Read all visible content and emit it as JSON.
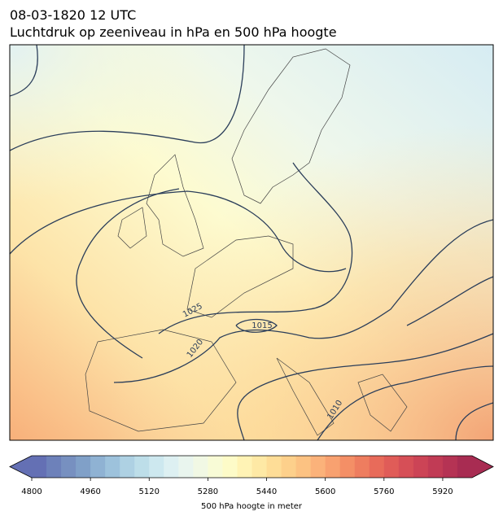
{
  "title": "08-03-1820 12 UTC",
  "subtitle": "Luchtdruk op zeeniveau in hPa en 500 hPa hoogte",
  "map": {
    "contour_labels": [
      "1025",
      "1020",
      "1015",
      "1010"
    ]
  },
  "colorbar": {
    "label": "500 hPa hoogte in meter",
    "lim": [
      4800,
      6000
    ],
    "ticks": [
      4800,
      4960,
      5120,
      5280,
      5440,
      5600,
      5760,
      5920
    ],
    "colors": [
      "#6470b4",
      "#6d81ba",
      "#7790c0",
      "#80a0c8",
      "#8fb2d3",
      "#9dc2dc",
      "#aed1e3",
      "#bddee9",
      "#cde8ef",
      "#ddf0f2",
      "#e9f5ee",
      "#f1f8e4",
      "#f8fbd6",
      "#fdfbc8",
      "#fff3b5",
      "#fee9a5",
      "#fedd97",
      "#fdd08b",
      "#fcc282",
      "#fbb27a",
      "#f8a170",
      "#f48f66",
      "#ee7d5f",
      "#e86b5a",
      "#e05c58",
      "#d64f57",
      "#cc4456",
      "#c13b55",
      "#b53354",
      "#a82c52"
    ]
  }
}
